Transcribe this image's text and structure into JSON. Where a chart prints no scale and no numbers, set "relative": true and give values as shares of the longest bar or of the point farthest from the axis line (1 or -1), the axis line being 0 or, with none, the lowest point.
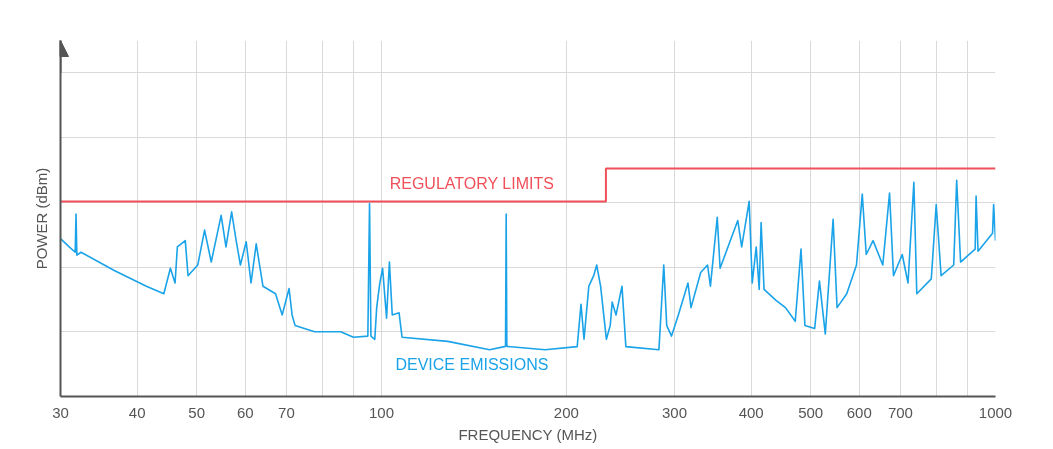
{
  "chart_data": {
    "type": "line",
    "relative": true,
    "log": "x",
    "xlabel": "FREQUENCY (MHz)",
    "ylabel": "POWER (dBm)",
    "xlim": [
      30,
      1000
    ],
    "xticks": [
      30,
      40,
      50,
      60,
      70,
      {
        "value": 80,
        "label": null
      },
      {
        "value": 90,
        "label": null
      },
      100,
      200,
      300,
      400,
      500,
      600,
      700,
      {
        "value": 800,
        "label": null
      },
      {
        "value": 900,
        "label": null
      },
      1000
    ],
    "tick_labels": "x",
    "grid": true,
    "legend": false,
    "marker": "none",
    "line_style": "solid",
    "series": [
      {
        "name": "REGULATORY LIMITS",
        "type": "step",
        "color": "#f0505a",
        "x": [
          30,
          232,
          1000
        ],
        "values": [
          0.856,
          1,
          1
        ]
      },
      {
        "name": "DEVICE EMISSIONS",
        "color": "#1aa3e8",
        "x": [
          30,
          30.9,
          31.7,
          31.8,
          31.9,
          32.4,
          36.7,
          41.4,
          44.2,
          45.3,
          46.1,
          46.5,
          47.9,
          48.4,
          50.2,
          51.5,
          52.8,
          54.8,
          55.8,
          57.0,
          57.9,
          58.9,
          60.2,
          61.3,
          62.5,
          64.1,
          67.2,
          68.9,
          70.7,
          71.5,
          72.3,
          77.8,
          85.8,
          90.0,
          95.0,
          95.6,
          96.1,
          97.5,
          98.2,
          99.3,
          100.4,
          101.9,
          103.0,
          104.1,
          106.8,
          108.0,
          128.2,
          150.0,
          159.2,
          159.6,
          160.0,
          184.7,
          208.3,
          211.3,
          213.7,
          217.6,
          221.6,
          224.1,
          227.4,
          232.4,
          235.8,
          237.5,
          241.0,
          246.4,
          250.0,
          283.0,
          288.2,
          291.4,
          296.7,
          304.4,
          315.6,
          319.2,
          331,
          339.6,
          343.3,
          352.2,
          356,
          380.4,
          386,
          397,
          401.6,
          407.6,
          412.2,
          415.2,
          419.8,
          438.6,
          454.9,
          471.9,
          482.2,
          489.3,
          507.5,
          516.7,
          528.2,
          543.9,
          552,
          572.4,
          593.7,
          606.7,
          615.8,
          631.8,
          655.3,
          672.1,
          682.1,
          704.8,
          720.3,
          736.3,
          744.4,
          786,
          800.6,
          815.5,
          855,
          864.5,
          877.3,
          926.6,
          929.8,
          936.6,
          989,
          993,
          1000
        ],
        "values": [
          0.693,
          0.66,
          0.633,
          0.8,
          0.62,
          0.633,
          0.553,
          0.484,
          0.451,
          0.563,
          0.498,
          0.656,
          0.684,
          0.53,
          0.577,
          0.73,
          0.59,
          0.795,
          0.656,
          0.81,
          0.693,
          0.577,
          0.679,
          0.498,
          0.67,
          0.484,
          0.451,
          0.358,
          0.474,
          0.358,
          0.312,
          0.284,
          0.284,
          0.26,
          0.265,
          0.847,
          0.265,
          0.251,
          0.39,
          0.493,
          0.563,
          0.344,
          0.59,
          0.358,
          0.367,
          0.26,
          0.242,
          0.205,
          0.22,
          0.8,
          0.22,
          0.205,
          0.219,
          0.405,
          0.251,
          0.484,
          0.53,
          0.577,
          0.484,
          0.251,
          0.312,
          0.414,
          0.358,
          0.484,
          0.219,
          0.205,
          0.577,
          0.312,
          0.265,
          0.358,
          0.498,
          0.39,
          0.544,
          0.577,
          0.484,
          0.786,
          0.563,
          0.772,
          0.656,
          0.856,
          0.498,
          0.656,
          0.47,
          0.763,
          0.47,
          0.423,
          0.39,
          0.33,
          0.647,
          0.312,
          0.298,
          0.507,
          0.274,
          0.777,
          0.39,
          0.451,
          0.577,
          0.888,
          0.623,
          0.684,
          0.577,
          0.893,
          0.53,
          0.623,
          0.498,
          0.94,
          0.451,
          0.516,
          0.842,
          0.53,
          0.577,
          0.949,
          0.59,
          0.647,
          0.879,
          0.637,
          0.716,
          0.842,
          0.684
        ]
      }
    ]
  }
}
